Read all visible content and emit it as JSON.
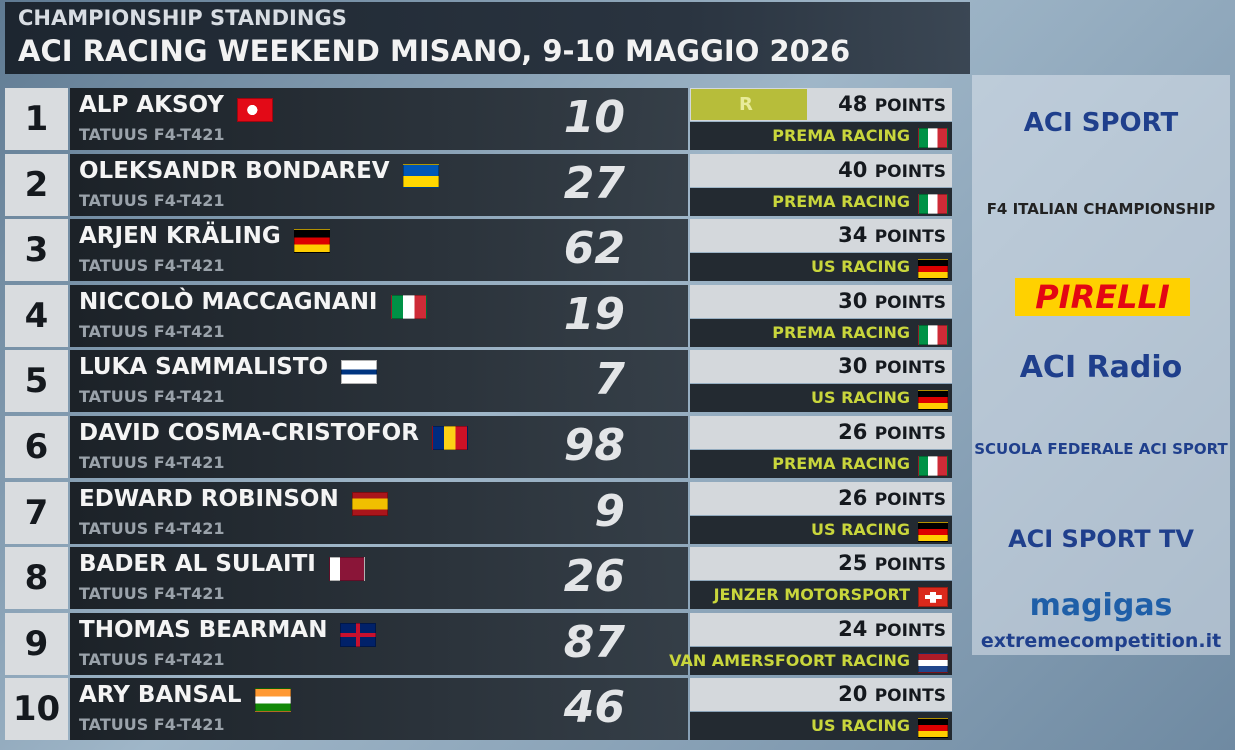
{
  "header": {
    "subtitle": "CHAMPIONSHIP STANDINGS",
    "title": "ACI RACING WEEKEND MISANO, 9-10 MAGGIO 2026"
  },
  "points_unit": "POINTS",
  "leader_badge": "R",
  "rows": [
    {
      "position": "1",
      "driver": "ALP AKSOY",
      "car": "TATUUS F4-T421",
      "number": "10",
      "points": "48",
      "team": "PREMA RACING"
    },
    {
      "position": "2",
      "driver": "OLEKSANDR BONDAREV",
      "car": "TATUUS F4-T421",
      "number": "27",
      "points": "40",
      "team": "PREMA RACING"
    },
    {
      "position": "3",
      "driver": "ARJEN KRÄLING",
      "car": "TATUUS F4-T421",
      "number": "62",
      "points": "34",
      "team": "US RACING"
    },
    {
      "position": "4",
      "driver": "NICCOLÒ MACCAGNANI",
      "car": "TATUUS F4-T421",
      "number": "19",
      "points": "30",
      "team": "PREMA RACING"
    },
    {
      "position": "5",
      "driver": "LUKA SAMMALISTO",
      "car": "TATUUS F4-T421",
      "number": "7",
      "points": "30",
      "team": "US RACING"
    },
    {
      "position": "6",
      "driver": "DAVID COSMA-CRISTOFOR",
      "car": "TATUUS F4-T421",
      "number": "98",
      "points": "26",
      "team": "PREMA RACING"
    },
    {
      "position": "7",
      "driver": "EDWARD ROBINSON",
      "car": "TATUUS F4-T421",
      "number": "9",
      "points": "26",
      "team": "US RACING"
    },
    {
      "position": "8",
      "driver": "BADER AL SULAITI",
      "car": "TATUUS F4-T421",
      "number": "26",
      "points": "25",
      "team": "JENZER MOTORSPORT"
    },
    {
      "position": "9",
      "driver": "THOMAS BEARMAN",
      "car": "TATUUS F4-T421",
      "number": "87",
      "points": "24",
      "team": "VAN AMERSFOORT RACING"
    },
    {
      "position": "10",
      "driver": "ARY BANSAL",
      "car": "TATUUS F4-T421",
      "number": "46",
      "points": "20",
      "team": "US RACING"
    }
  ],
  "sponsors": [
    "ACI SPORT",
    "F4 ITALIAN CHAMPIONSHIP",
    "PIRELLI",
    "ACI Radio",
    "SCUOLA FEDERALE ACI SPORT",
    "ACI SPORT TV",
    "magigas",
    "extremecompetition.it"
  ]
}
